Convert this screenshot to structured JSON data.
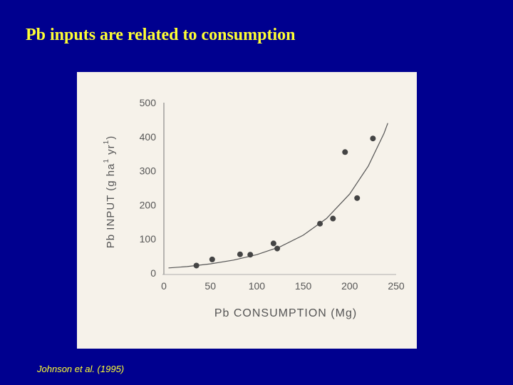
{
  "slide": {
    "title": "Pb inputs are related to consumption",
    "citation": "Johnson et al. (1995)"
  },
  "colors": {
    "background": "#00008f",
    "title_text": "#ffff33",
    "figure_background": "#f6f2ea",
    "ink": "#444444"
  },
  "chart_data": {
    "type": "scatter",
    "xlabel": "Pb CONSUMPTION (Mg)",
    "ylabel": "Pb INPUT (g ha-1 yr-1)",
    "ylabel_main": "Pb INPUT (g ha",
    "ylabel_sup1": "1",
    "ylabel_mid": " yr",
    "ylabel_sup2": "1",
    "ylabel_end": ")",
    "xlim": [
      0,
      250
    ],
    "ylim": [
      0,
      500
    ],
    "xticks": [
      "0",
      "50",
      "100",
      "150",
      "200",
      "250"
    ],
    "yticks": [
      "0",
      "100",
      "200",
      "300",
      "400",
      "500"
    ],
    "grid": false,
    "series": [
      {
        "points": [
          [
            35,
            22
          ],
          [
            52,
            40
          ],
          [
            82,
            55
          ],
          [
            93,
            54
          ],
          [
            118,
            87
          ],
          [
            122,
            72
          ],
          [
            168,
            145
          ],
          [
            182,
            160
          ],
          [
            195,
            355
          ],
          [
            208,
            220
          ],
          [
            225,
            395
          ]
        ]
      }
    ],
    "fit_curve": {
      "shape": "exponential",
      "points": [
        [
          5,
          15
        ],
        [
          25,
          19
        ],
        [
          50,
          27
        ],
        [
          75,
          38
        ],
        [
          100,
          54
        ],
        [
          125,
          77
        ],
        [
          150,
          111
        ],
        [
          175,
          160
        ],
        [
          200,
          232
        ],
        [
          220,
          314
        ],
        [
          237,
          410
        ],
        [
          241,
          440
        ]
      ]
    }
  }
}
